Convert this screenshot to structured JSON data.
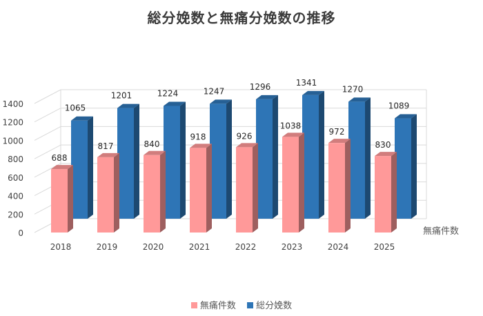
{
  "chart_data": {
    "type": "bar",
    "title": "総分娩数と無痛分娩数の推移",
    "categories": [
      "2018",
      "2019",
      "2020",
      "2021",
      "2022",
      "2023",
      "2024",
      "2025"
    ],
    "series": [
      {
        "name": "無痛件数",
        "values": [
          688,
          817,
          840,
          918,
          926,
          1038,
          972,
          830
        ],
        "color": "#ff9999"
      },
      {
        "name": "総分娩数",
        "values": [
          1065,
          1201,
          1224,
          1247,
          1296,
          1341,
          1270,
          1089
        ],
        "color": "#2e75b6"
      }
    ],
    "yticks": [
      0,
      200,
      400,
      600,
      800,
      1000,
      1200,
      1400
    ],
    "ylim": [
      0,
      1400
    ],
    "depth_axis_label": "無痛件数",
    "grid": true,
    "legend_position": "bottom",
    "style": "3d-column"
  }
}
